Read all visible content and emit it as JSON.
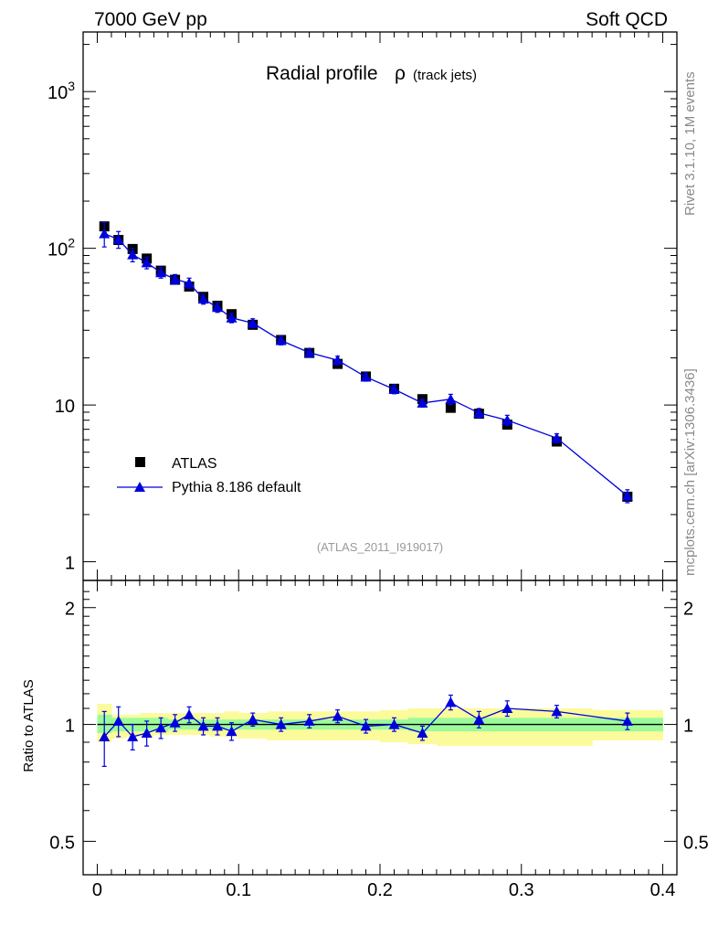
{
  "header": {
    "left": "7000 GeV pp",
    "right": "Soft QCD"
  },
  "side_labels": {
    "top": "Rivet 3.1.10,  1M events",
    "bottom": "mcplots.cern.ch [arXiv:1306.3436]"
  },
  "colors": {
    "mc": "#0000dd",
    "data": "#000000",
    "band_inner": "#9bfb9b",
    "band_outer": "#fbfb9b"
  },
  "chart_data": [
    {
      "type": "line",
      "title": "Radial profile ρ",
      "title_main": "Radial profile",
      "title_symbol": "ρ",
      "title_sub": "(track jets)",
      "watermark": "(ATLAS_2011_I919017)",
      "xlim": [
        -0.01,
        0.41
      ],
      "ylim": [
        0.76,
        2400
      ],
      "yscale": "log",
      "y_tick_labels": [
        "1",
        "10",
        "10²",
        "10³"
      ],
      "legend_position": "lower-left",
      "legend": [
        "ATLAS",
        "Pythia 8.186 default"
      ],
      "series": [
        {
          "name": "ATLAS",
          "x": [
            0.005,
            0.015,
            0.025,
            0.035,
            0.045,
            0.055,
            0.065,
            0.075,
            0.085,
            0.095,
            0.11,
            0.13,
            0.15,
            0.17,
            0.19,
            0.21,
            0.23,
            0.25,
            0.27,
            0.29,
            0.325,
            0.375
          ],
          "y": [
            138,
            113,
            99,
            86,
            72,
            63,
            57,
            49,
            43,
            38,
            32.5,
            26,
            21.5,
            18.3,
            15.2,
            12.7,
            10.9,
            9.6,
            8.8,
            7.5,
            5.85,
            2.6
          ]
        },
        {
          "name": "Pythia 8.186 default",
          "x": [
            0.005,
            0.015,
            0.025,
            0.035,
            0.045,
            0.055,
            0.065,
            0.075,
            0.085,
            0.095,
            0.11,
            0.13,
            0.15,
            0.17,
            0.19,
            0.21,
            0.23,
            0.25,
            0.27,
            0.29,
            0.325,
            0.375
          ],
          "y": [
            124,
            114,
            91,
            81,
            70,
            63.5,
            60,
            47.5,
            42,
            36,
            33.3,
            25.8,
            21.6,
            19.3,
            15.1,
            12.6,
            10.3,
            10.9,
            8.9,
            8.0,
            6.15,
            2.63
          ],
          "yerr": [
            22,
            14,
            9,
            7,
            5.5,
            4.5,
            4.5,
            3.5,
            3,
            2.5,
            2.2,
            1.6,
            1.3,
            1.2,
            0.9,
            0.8,
            0.6,
            0.8,
            0.6,
            0.6,
            0.4,
            0.25
          ]
        }
      ]
    },
    {
      "type": "line",
      "ylabel": "Ratio to ATLAS",
      "xlim": [
        -0.01,
        0.41
      ],
      "ylim": [
        0.41,
        2.35
      ],
      "yscale": "log",
      "x_ticks": [
        0,
        0.1,
        0.2,
        0.3,
        0.4
      ],
      "x_tick_labels": [
        "0",
        "0.1",
        "0.2",
        "0.3",
        "0.4"
      ],
      "y_ticks": [
        0.5,
        1,
        2
      ],
      "y_tick_labels": [
        "0.5",
        "1",
        "2"
      ],
      "series": [
        {
          "name": "Pythia 8.186 default",
          "x": [
            0.005,
            0.015,
            0.025,
            0.035,
            0.045,
            0.055,
            0.065,
            0.075,
            0.085,
            0.095,
            0.11,
            0.13,
            0.15,
            0.17,
            0.19,
            0.21,
            0.23,
            0.25,
            0.27,
            0.29,
            0.325,
            0.375
          ],
          "y": [
            0.93,
            1.02,
            0.93,
            0.95,
            0.98,
            1.01,
            1.06,
            0.99,
            0.99,
            0.96,
            1.03,
            1.0,
            1.02,
            1.05,
            0.99,
            1.0,
            0.95,
            1.14,
            1.03,
            1.1,
            1.08,
            1.02
          ],
          "yerr": [
            0.15,
            0.09,
            0.07,
            0.07,
            0.06,
            0.05,
            0.05,
            0.05,
            0.05,
            0.05,
            0.04,
            0.04,
            0.04,
            0.04,
            0.04,
            0.04,
            0.04,
            0.05,
            0.05,
            0.05,
            0.04,
            0.05
          ]
        }
      ],
      "bands": [
        {
          "x": [
            0,
            0.01,
            0.02,
            0.03,
            0.04,
            0.05,
            0.06,
            0.07,
            0.08,
            0.09,
            0.1,
            0.12,
            0.14,
            0.16,
            0.18,
            0.2,
            0.22,
            0.24,
            0.26,
            0.28,
            0.3,
            0.35,
            0.4
          ],
          "inner_lo": [
            0.95,
            0.96,
            0.96,
            0.96,
            0.96,
            0.97,
            0.97,
            0.97,
            0.97,
            0.97,
            0.97,
            0.97,
            0.97,
            0.97,
            0.97,
            0.97,
            0.96,
            0.96,
            0.96,
            0.96,
            0.96,
            0.96
          ],
          "inner_hi": [
            1.06,
            1.04,
            1.04,
            1.04,
            1.04,
            1.03,
            1.03,
            1.03,
            1.03,
            1.03,
            1.03,
            1.03,
            1.03,
            1.03,
            1.03,
            1.03,
            1.04,
            1.04,
            1.04,
            1.04,
            1.04,
            1.04
          ],
          "outer_lo": [
            0.9,
            0.92,
            0.93,
            0.93,
            0.94,
            0.94,
            0.94,
            0.94,
            0.93,
            0.93,
            0.92,
            0.91,
            0.91,
            0.91,
            0.91,
            0.9,
            0.89,
            0.88,
            0.88,
            0.88,
            0.88,
            0.91
          ],
          "outer_hi": [
            1.13,
            1.06,
            1.06,
            1.07,
            1.07,
            1.07,
            1.07,
            1.07,
            1.07,
            1.08,
            1.07,
            1.08,
            1.08,
            1.08,
            1.08,
            1.09,
            1.1,
            1.1,
            1.1,
            1.1,
            1.1,
            1.09
          ]
        }
      ]
    }
  ]
}
